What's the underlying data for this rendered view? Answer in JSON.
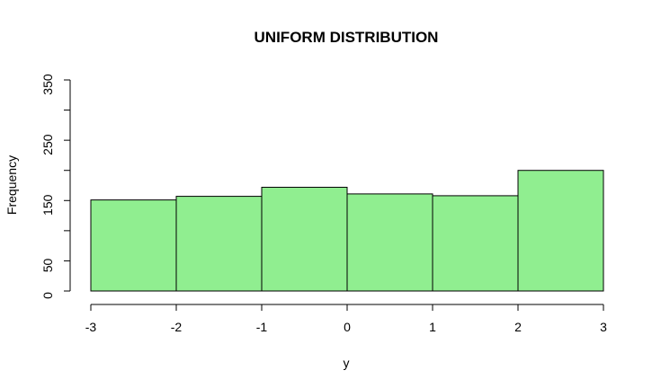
{
  "chart_data": {
    "type": "bar",
    "title": "UNIFORM DISTRIBUTION",
    "xlabel": "y",
    "ylabel": "Frequency",
    "bin_edges": [
      -3,
      -2,
      -1,
      0,
      1,
      2,
      3
    ],
    "values": [
      151,
      157,
      172,
      161,
      158,
      200
    ],
    "xlim": [
      -3,
      3
    ],
    "ylim": [
      0,
      350
    ],
    "x_ticks": [
      -3,
      -2,
      -1,
      0,
      1,
      2,
      3
    ],
    "x_tick_labels": [
      "-3",
      "-2",
      "-1",
      "0",
      "1",
      "2",
      "3"
    ],
    "y_ticks": [
      0,
      50,
      100,
      150,
      200,
      250,
      300,
      350
    ],
    "y_tick_labels": [
      "0",
      "50",
      "",
      "150",
      "",
      "250",
      "",
      "350"
    ],
    "bar_color": "#90ee90",
    "grid": false,
    "legend": "none"
  }
}
